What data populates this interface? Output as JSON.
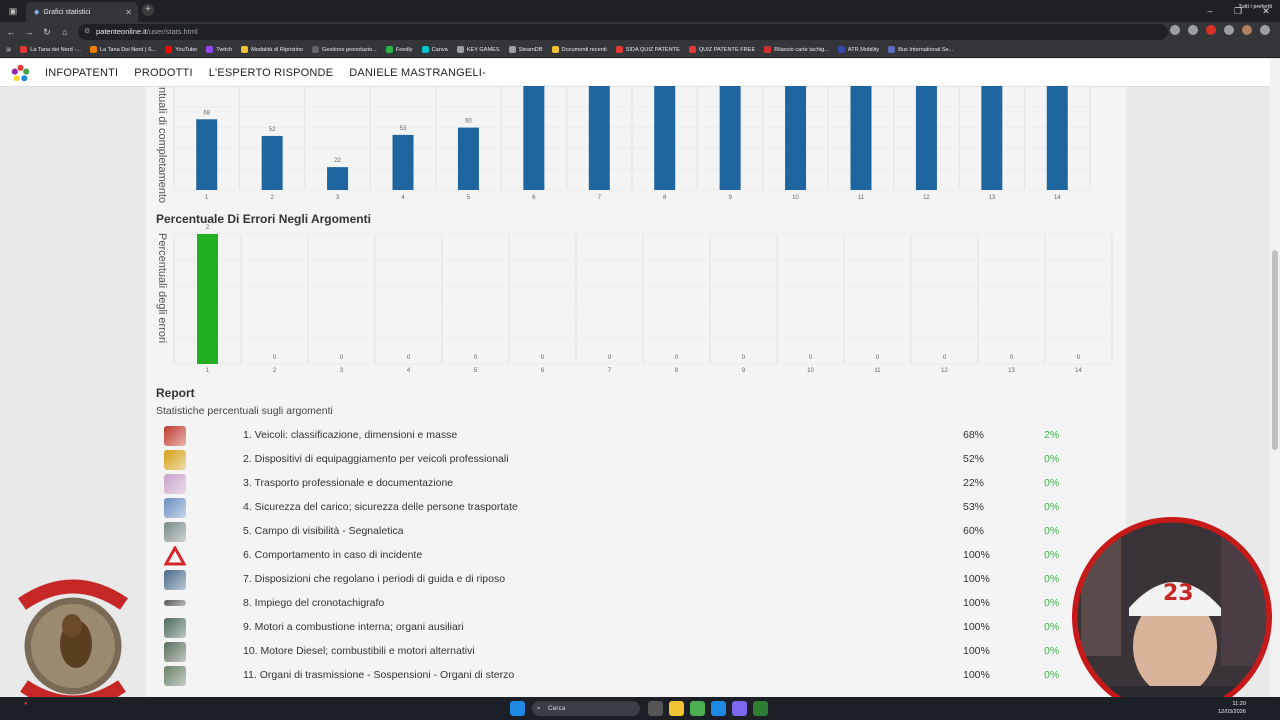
{
  "browser": {
    "tab_title": "Grafici statistici",
    "url_domain": "patenteonline.it",
    "url_path": "/user/stats.html",
    "bookmarks": [
      {
        "label": "La Tana dei Nerd -..."
      },
      {
        "label": "La Tana Dei Nerd | S..."
      },
      {
        "label": "YouTube"
      },
      {
        "label": "Twitch"
      },
      {
        "label": "Modalità di Ripristino"
      },
      {
        "label": "Gestione prenotazio..."
      },
      {
        "label": "Feedly"
      },
      {
        "label": "Canva"
      },
      {
        "label": "KEY GAMES"
      },
      {
        "label": "SteamDB"
      },
      {
        "label": "Documenti recenti"
      },
      {
        "label": "SIDA QUIZ PATENTE"
      },
      {
        "label": "QUIZ PATENTE FREE"
      },
      {
        "label": "Rilascio carte tachig..."
      },
      {
        "label": "ATR Mobility"
      },
      {
        "label": "Bus International Se..."
      }
    ],
    "all_bookmarks": "Tutti i preferiti"
  },
  "site_nav": {
    "items": [
      {
        "label": "INFOPATENTI"
      },
      {
        "label": "PRODOTTI"
      },
      {
        "label": "L'ESPERTO RISPONDE"
      },
      {
        "label": "DANIELE MASTRANGELI-"
      }
    ]
  },
  "chart_data": [
    {
      "type": "bar",
      "title": "",
      "ylabel": "ntuali di completamento",
      "categories": [
        "1",
        "2",
        "3",
        "4",
        "5",
        "6",
        "7",
        "8",
        "9",
        "10",
        "11",
        "12",
        "13",
        "14"
      ],
      "values": [
        68,
        52,
        22,
        53,
        60,
        100,
        100,
        100,
        100,
        100,
        100,
        100,
        100,
        100
      ],
      "data_labels": [
        "68",
        "52",
        "22",
        "53",
        "60",
        "",
        "",
        "",
        "",
        "",
        "",
        "",
        "",
        ""
      ],
      "ylim": [
        0,
        100
      ],
      "color": "#1f66a0",
      "grid": true
    },
    {
      "type": "bar",
      "title": "Percentuale Di Errori Negli Argomenti",
      "ylabel": "Percentuali degli errori",
      "categories": [
        "1",
        "2",
        "3",
        "4",
        "5",
        "6",
        "7",
        "8",
        "9",
        "10",
        "11",
        "12",
        "13",
        "14"
      ],
      "values": [
        2,
        0,
        0,
        0,
        0,
        0,
        0,
        0,
        0,
        0,
        0,
        0,
        0,
        0
      ],
      "data_labels": [
        "2",
        "0",
        "0",
        "0",
        "0",
        "0",
        "0",
        "0",
        "0",
        "0",
        "0",
        "0",
        "0",
        "0"
      ],
      "ylim": [
        0,
        2
      ],
      "color": "#22b022",
      "grid": true
    }
  ],
  "report": {
    "title": "Report",
    "subtitle": "Statistiche percentuali sugli argomenti",
    "rows": [
      {
        "name": "1. Veicoli: classificazione, dimensioni e masse",
        "completion": "68%",
        "errors": "2%",
        "icon": "truck-icon",
        "color": "#c0392b"
      },
      {
        "name": "2. Dispositivi di equipaggiamento per veicoli professionali",
        "completion": "52%",
        "errors": "0%",
        "icon": "equipment-icon",
        "color": "#d4a017"
      },
      {
        "name": "3. Trasporto professionale e documentazione",
        "completion": "22%",
        "errors": "0%",
        "icon": "documents-icon",
        "color": "#c9a3c9"
      },
      {
        "name": "4. Sicurezza del carico; sicurezza delle persone trasportate",
        "completion": "53%",
        "errors": "0%",
        "icon": "cargo-icon",
        "color": "#6a8fc2"
      },
      {
        "name": "5. Campo di visibilità - Segnaletica",
        "completion": "60%",
        "errors": "0%",
        "icon": "visibility-icon",
        "color": "#7a8a8a"
      },
      {
        "name": "6. Comportamento in caso di incidente",
        "completion": "100%",
        "errors": "0%",
        "icon": "warning-triangle-icon",
        "color": "#d62828"
      },
      {
        "name": "7. Disposizioni che regolano i periodi di guida e di riposo",
        "completion": "100%",
        "errors": "0%",
        "icon": "clock-icon",
        "color": "#4a6a8a"
      },
      {
        "name": "8. Impiego del cronotachigrafo",
        "completion": "100%",
        "errors": "0%",
        "icon": "tachograph-icon",
        "color": "#555555"
      },
      {
        "name": "9. Motori a combustione interna; organi ausiliari",
        "completion": "100%",
        "errors": "0%",
        "icon": "engine-icon",
        "color": "#4d6b5a"
      },
      {
        "name": "10. Motore Diesel; combustibili e motori alternativi",
        "completion": "100%",
        "errors": "0%",
        "icon": "diesel-engine-icon",
        "color": "#5a6d5a"
      },
      {
        "name": "11. Organi di trasmissione - Sospensioni - Organi di sterzo",
        "completion": "100%",
        "errors": "0%",
        "icon": "transmission-icon",
        "color": "#6a7f6a"
      }
    ]
  },
  "taskbar": {
    "search_placeholder": "Cerca",
    "time": "11:20",
    "date": "12/03/2026"
  }
}
